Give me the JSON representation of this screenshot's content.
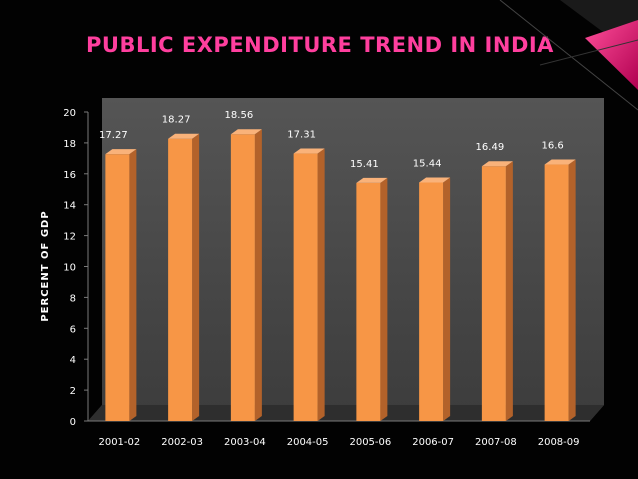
{
  "chart_data": {
    "type": "bar",
    "title": "PUBLIC  EXPENDITURE  TREND  IN INDIA",
    "xlabel": "",
    "ylabel": "PERCENT  OF  GDP",
    "categories": [
      "2001-02",
      "2002-03",
      "2003-04",
      "2004-05",
      "2005-06",
      "2006-07",
      "2007-08",
      "2008-09"
    ],
    "values": [
      17.27,
      18.27,
      18.56,
      17.31,
      15.41,
      15.44,
      16.49,
      16.6
    ],
    "value_labels": [
      "17.27",
      "18.27",
      "18.56",
      "17.31",
      "15.41",
      "15.44",
      "16.49",
      "16.6"
    ],
    "ylim": [
      0,
      20
    ],
    "yticks": [
      "0",
      "2",
      "4",
      "6",
      "8",
      "10",
      "12",
      "14",
      "16",
      "18",
      "20"
    ],
    "grid": false,
    "colors": {
      "bar_front": "#f79646",
      "bar_side": "#b3622a",
      "bar_top": "#f9b27a",
      "wall": "#4a4a4a",
      "title": "#ff3f9e",
      "accent": "#e0106a"
    }
  }
}
